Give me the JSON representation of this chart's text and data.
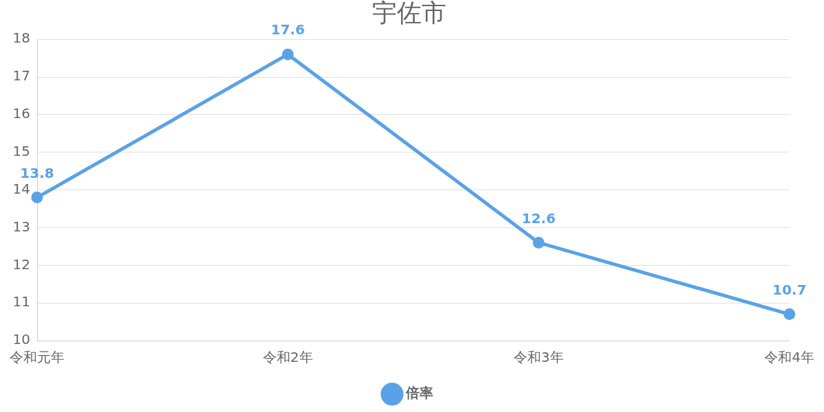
{
  "chart_data": {
    "type": "line",
    "title": "宇佐市",
    "categories": [
      "令和元年",
      "令和2年",
      "令和3年",
      "令和4年"
    ],
    "series": [
      {
        "name": "倍率",
        "color": "#5aa2e6",
        "values": [
          13.8,
          17.6,
          12.6,
          10.7
        ]
      }
    ],
    "ylim": [
      10,
      18
    ],
    "yticks": [
      10,
      11,
      12,
      13,
      14,
      15,
      16,
      17,
      18
    ],
    "grid": "y",
    "legend": "bottom",
    "marker": "circle",
    "line_style": "solid",
    "data_labels": true
  }
}
